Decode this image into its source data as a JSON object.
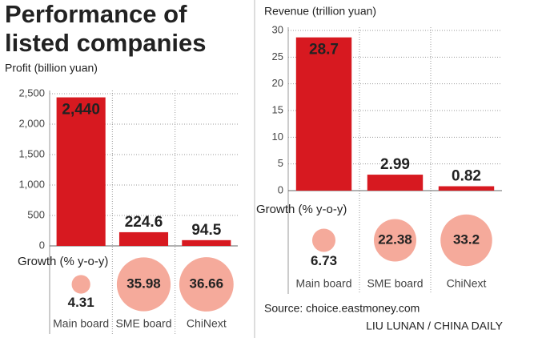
{
  "title": [
    "Performance of",
    "listed companies"
  ],
  "chart_data": [
    {
      "type": "bar",
      "y_label": "Profit (billion yuan)",
      "categories": [
        "Main board",
        "SME board",
        "ChiNext"
      ],
      "values": [
        2440,
        224.6,
        94.5
      ],
      "value_labels": [
        "2,440",
        "224.6",
        "94.5"
      ],
      "color": "#d71920",
      "ylim": [
        0,
        2500
      ],
      "yticks": [
        0,
        500,
        {
          "value": 1000,
          "label": "1,000"
        },
        {
          "value": 1500,
          "label": "1,500"
        },
        {
          "value": 2000,
          "label": "2,000"
        },
        {
          "value": 2500,
          "label": "2,500"
        }
      ],
      "grid": true,
      "growth_label": "Growth (% y-o-y)",
      "growth": [
        4.31,
        35.98,
        36.66
      ],
      "growth_color": "#f5aa9b"
    },
    {
      "type": "bar",
      "y_label": "Revenue (trillion yuan)",
      "categories": [
        "Main board",
        "SME board",
        "ChiNext"
      ],
      "values": [
        28.7,
        2.99,
        0.82
      ],
      "value_labels": [
        "28.7",
        "2.99",
        "0.82"
      ],
      "color": "#d71920",
      "ylim": [
        0,
        30
      ],
      "yticks": [
        0,
        5,
        10,
        15,
        20,
        25,
        30
      ],
      "grid": true,
      "growth_label": "Growth (% y-o-y)",
      "growth": [
        6.73,
        22.38,
        33.2
      ],
      "growth_color": "#f5aa9b"
    }
  ],
  "source": "Source: choice.eastmoney.com",
  "credit": "LIU LUNAN / CHINA DAILY"
}
